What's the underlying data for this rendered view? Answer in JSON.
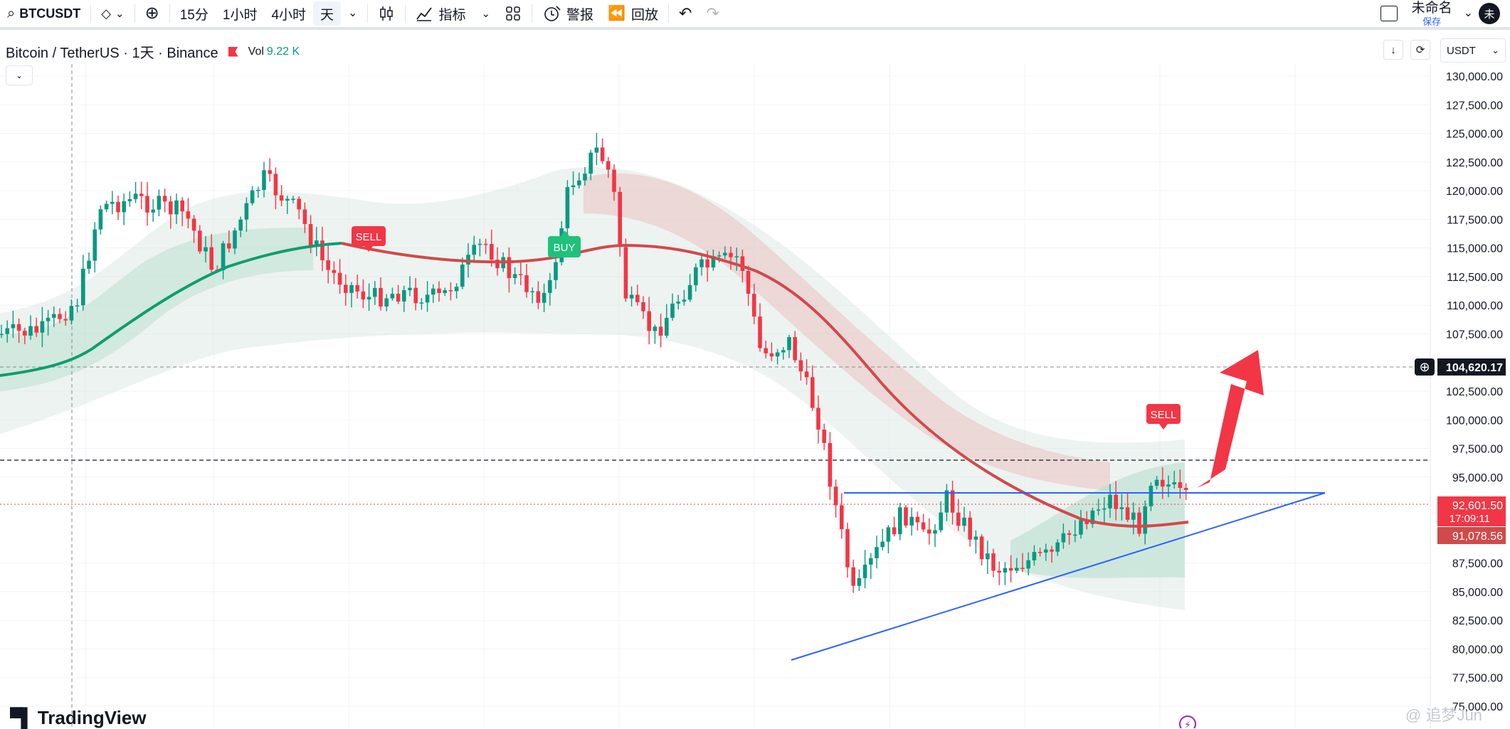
{
  "toolbar": {
    "symbol": "BTCUSDT",
    "intervals": [
      "15分",
      "1小时",
      "4小时",
      "天"
    ],
    "active_interval": "天",
    "indicators_label": "指标",
    "alert_label": "警报",
    "replay_label": "回放",
    "layout_name": "未命名",
    "save_label": "保存",
    "avatar_initial": "未"
  },
  "legend": {
    "title": "Bitcoin / TetherUS · 1天 · Binance",
    "vol_label": "Vol",
    "vol_value": "9.22 K"
  },
  "currency": "USDT",
  "price_axis": {
    "ticks": [
      "130,000.00",
      "127,500.00",
      "125,000.00",
      "122,500.00",
      "120,000.00",
      "117,500.00",
      "115,000.00",
      "112,500.00",
      "110,000.00",
      "107,500.00",
      "102,500.00",
      "100,000.00",
      "97,500.00",
      "95,000.00",
      "87,500.00",
      "85,000.00",
      "82,500.00",
      "80,000.00",
      "77,500.00",
      "75,000.00"
    ],
    "crosshair_label": "104,620.17",
    "last_price": "92,601.50",
    "countdown": "17:09:11",
    "ma_value": "91,078.56"
  },
  "signals": {
    "sell_1": "SELL",
    "buy_1": "BUY",
    "sell_2": "SELL"
  },
  "colors": {
    "up": "#089981",
    "down": "#f23645",
    "ma_green": "#0f9d6f",
    "ma_red": "#d04a4a",
    "trendline": "#2962ff",
    "arrow": "#f23645"
  },
  "branding": {
    "logo": "TradingView",
    "watermark": "@ 追梦Jun"
  }
}
